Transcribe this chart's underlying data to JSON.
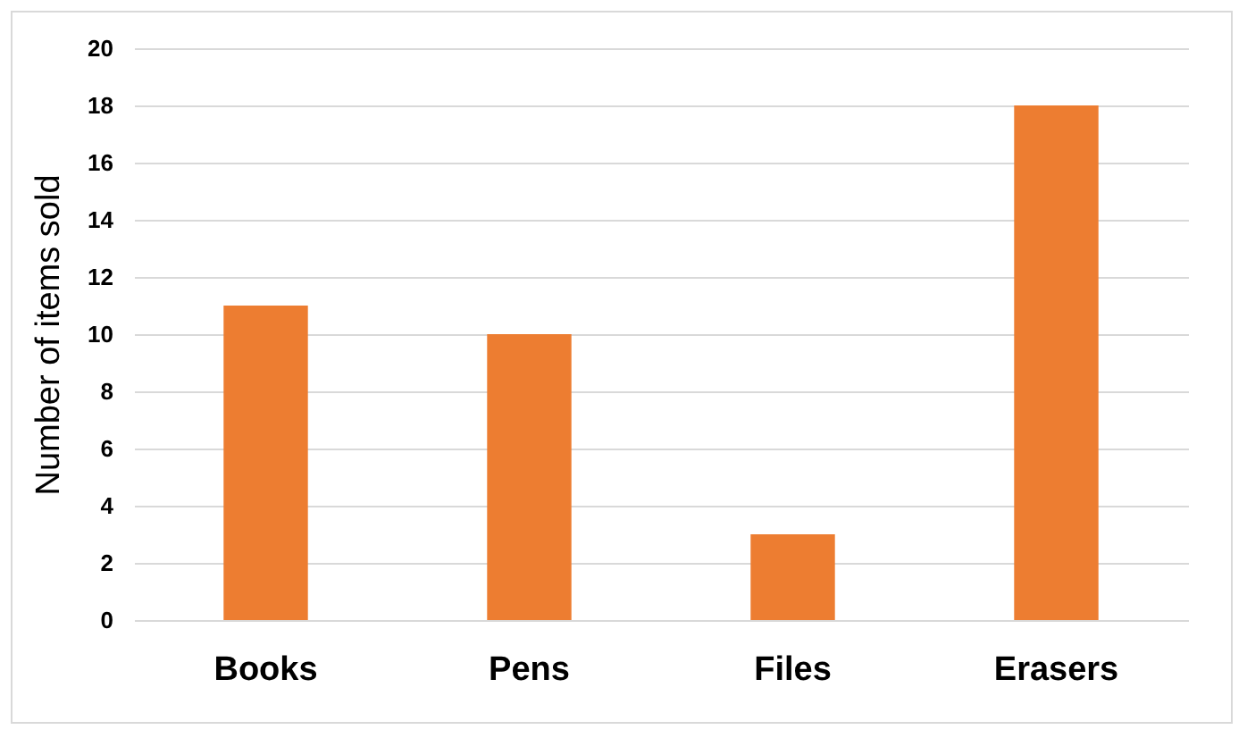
{
  "chart_data": {
    "type": "bar",
    "ylabel": "Number of items sold",
    "categories": [
      "Books",
      "Pens",
      "Files",
      "Erasers"
    ],
    "values": [
      11,
      10,
      3,
      18
    ],
    "color": "#ed7d31",
    "ylim": [
      0,
      20
    ],
    "yticks": [
      0,
      2,
      4,
      6,
      8,
      10,
      12,
      14,
      16,
      18,
      20
    ],
    "grid": "y"
  }
}
